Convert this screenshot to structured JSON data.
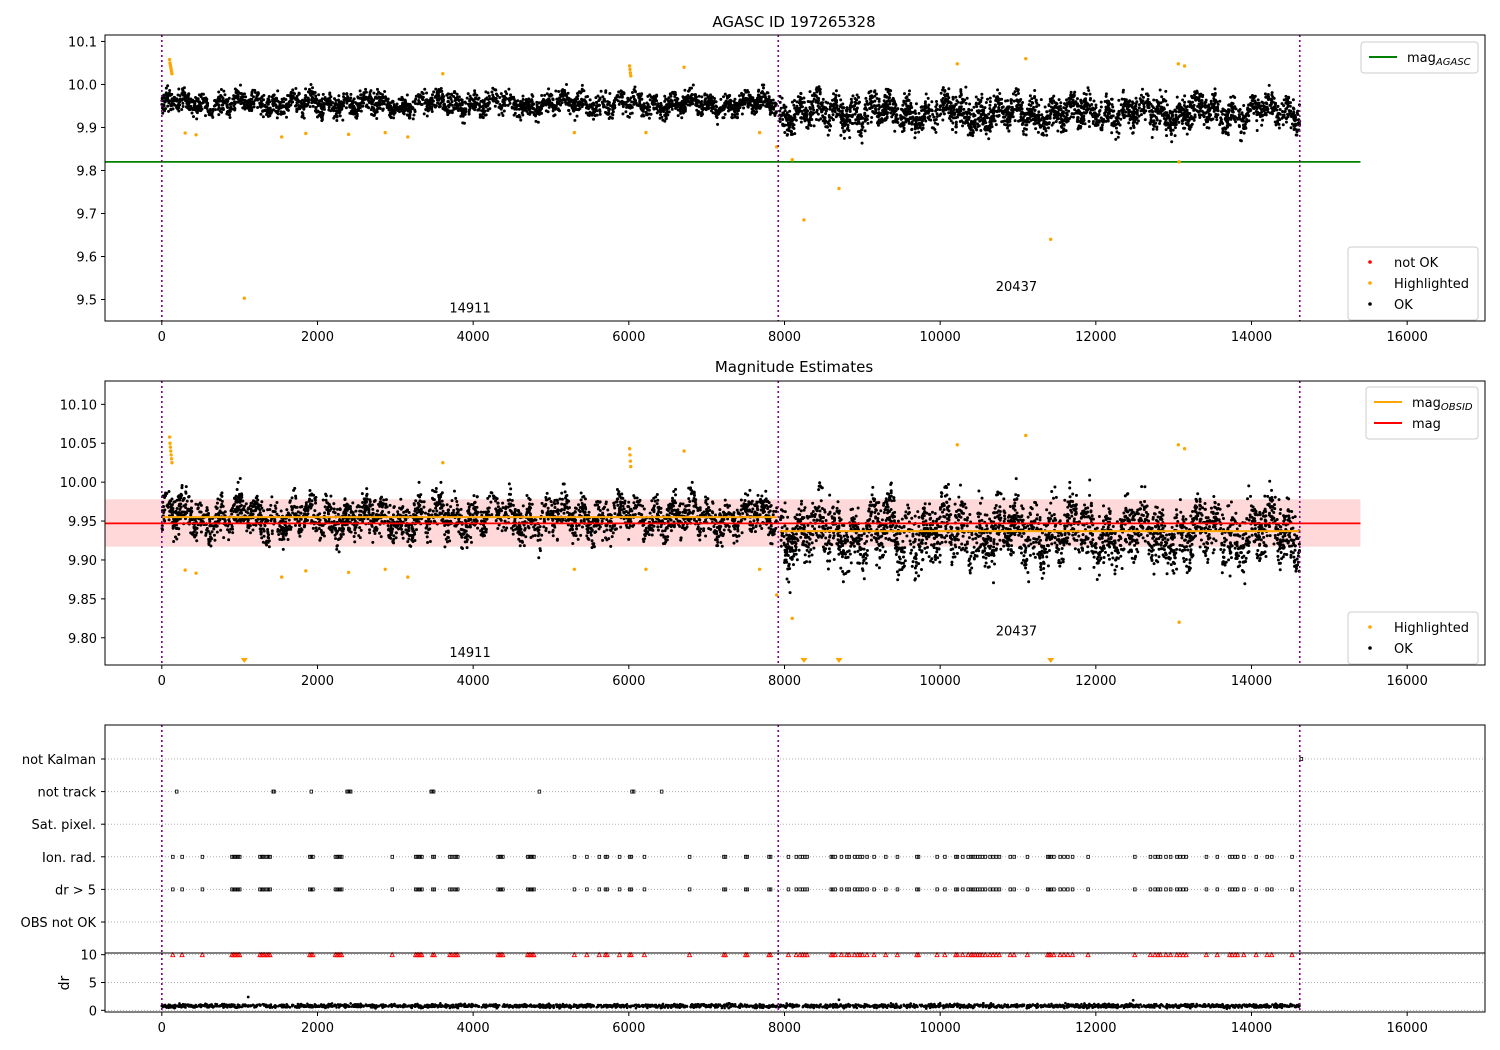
{
  "chart_data": [
    {
      "type": "scatter",
      "title": "AGASC ID 197265328",
      "xlabel": "",
      "ylabel": "",
      "xlim": [
        -730,
        17000
      ],
      "ylim": [
        9.45,
        10.115
      ],
      "xticks": [
        0,
        2000,
        4000,
        6000,
        8000,
        10000,
        12000,
        14000,
        16000
      ],
      "yticks": [
        9.5,
        9.6,
        9.7,
        9.8,
        9.9,
        10.0,
        10.1
      ],
      "ytick_labels": [
        "9.5",
        "9.6",
        "9.7",
        "9.8",
        "9.9",
        "10.0",
        "10.1"
      ],
      "grid": false,
      "vlines": [
        0,
        7920,
        14620
      ],
      "obsid_labels": [
        {
          "text": "14911",
          "x": 3960,
          "y": 9.47
        },
        {
          "text": "20437",
          "x": 10980,
          "y": 9.52
        }
      ],
      "hlines": [
        {
          "name": "mag_AGASC",
          "y": 9.82,
          "xrange": [
            -730,
            15400
          ],
          "color": "#008000"
        }
      ],
      "ok_segments": [
        {
          "x_start": 0,
          "x_end": 7900,
          "center": 9.955,
          "spread": 0.03,
          "color": "#000000"
        },
        {
          "x_start": 7940,
          "x_end": 14620,
          "center": 9.935,
          "spread": 0.045,
          "color": "#000000"
        }
      ],
      "highlighted_points": [
        {
          "x": 100,
          "y": 10.058
        },
        {
          "x": 105,
          "y": 10.05
        },
        {
          "x": 110,
          "y": 10.045
        },
        {
          "x": 115,
          "y": 10.04
        },
        {
          "x": 120,
          "y": 10.035
        },
        {
          "x": 125,
          "y": 10.03
        },
        {
          "x": 130,
          "y": 10.025
        },
        {
          "x": 300,
          "y": 9.887
        },
        {
          "x": 440,
          "y": 9.883
        },
        {
          "x": 1060,
          "y": 9.503
        },
        {
          "x": 1540,
          "y": 9.878
        },
        {
          "x": 1850,
          "y": 9.886
        },
        {
          "x": 2400,
          "y": 9.884
        },
        {
          "x": 2870,
          "y": 9.888
        },
        {
          "x": 3160,
          "y": 9.878
        },
        {
          "x": 3610,
          "y": 10.025
        },
        {
          "x": 5300,
          "y": 9.888
        },
        {
          "x": 6010,
          "y": 10.043
        },
        {
          "x": 6015,
          "y": 10.035
        },
        {
          "x": 6020,
          "y": 10.027
        },
        {
          "x": 6025,
          "y": 10.02
        },
        {
          "x": 6220,
          "y": 9.888
        },
        {
          "x": 6710,
          "y": 10.04
        },
        {
          "x": 7680,
          "y": 9.888
        },
        {
          "x": 7900,
          "y": 9.855
        },
        {
          "x": 8100,
          "y": 9.825
        },
        {
          "x": 8250,
          "y": 9.685
        },
        {
          "x": 8700,
          "y": 9.758
        },
        {
          "x": 10220,
          "y": 10.048
        },
        {
          "x": 11100,
          "y": 10.06
        },
        {
          "x": 11420,
          "y": 9.64
        },
        {
          "x": 13060,
          "y": 10.048
        },
        {
          "x": 13070,
          "y": 9.82
        },
        {
          "x": 13140,
          "y": 10.043
        }
      ],
      "legends": [
        {
          "position": "upper right",
          "entries": [
            {
              "label": "mag",
              "subscript": "AGASC",
              "marker": "line",
              "color": "#008000"
            }
          ]
        },
        {
          "position": "lower right",
          "entries": [
            {
              "label": "not OK",
              "marker": "dot",
              "color": "#ff0000"
            },
            {
              "label": "Highlighted",
              "marker": "dot",
              "color": "#ffa500"
            },
            {
              "label": "OK",
              "marker": "dot",
              "color": "#000000"
            }
          ]
        }
      ]
    },
    {
      "type": "scatter",
      "title": "Magnitude Estimates",
      "xlabel": "",
      "ylabel": "",
      "xlim": [
        -730,
        17000
      ],
      "ylim": [
        9.765,
        10.13
      ],
      "xticks": [
        0,
        2000,
        4000,
        6000,
        8000,
        10000,
        12000,
        14000,
        16000
      ],
      "yticks": [
        9.8,
        9.85,
        9.9,
        9.95,
        10.0,
        10.05,
        10.1
      ],
      "ytick_labels": [
        "9.80",
        "9.85",
        "9.90",
        "9.95",
        "10.00",
        "10.05",
        "10.10"
      ],
      "grid": false,
      "vlines": [
        0,
        7920,
        14620
      ],
      "obsid_labels": [
        {
          "text": "14911",
          "x": 3960,
          "y": 9.775
        },
        {
          "text": "20437",
          "x": 10980,
          "y": 9.803
        }
      ],
      "mag": 9.947,
      "mag_band": [
        9.917,
        9.978
      ],
      "mag_obsid": [
        {
          "x_start": 0,
          "x_end": 7900,
          "y": 9.955
        },
        {
          "x_start": 7940,
          "x_end": 14620,
          "y": 9.937
        }
      ],
      "ok_segments": [
        {
          "x_start": 0,
          "x_end": 7900,
          "center": 9.955,
          "spread": 0.03,
          "color": "#000000"
        },
        {
          "x_start": 7940,
          "x_end": 14620,
          "center": 9.935,
          "spread": 0.045,
          "color": "#000000"
        }
      ],
      "highlighted_points": [
        {
          "x": 100,
          "y": 10.058
        },
        {
          "x": 105,
          "y": 10.05
        },
        {
          "x": 110,
          "y": 10.045
        },
        {
          "x": 115,
          "y": 10.04
        },
        {
          "x": 120,
          "y": 10.035
        },
        {
          "x": 125,
          "y": 10.03
        },
        {
          "x": 130,
          "y": 10.025
        },
        {
          "x": 300,
          "y": 9.887
        },
        {
          "x": 440,
          "y": 9.883
        },
        {
          "x": 1540,
          "y": 9.878
        },
        {
          "x": 1850,
          "y": 9.886
        },
        {
          "x": 2400,
          "y": 9.884
        },
        {
          "x": 2870,
          "y": 9.888
        },
        {
          "x": 3160,
          "y": 9.878
        },
        {
          "x": 3610,
          "y": 10.025
        },
        {
          "x": 5300,
          "y": 9.888
        },
        {
          "x": 6010,
          "y": 10.043
        },
        {
          "x": 6015,
          "y": 10.035
        },
        {
          "x": 6020,
          "y": 10.027
        },
        {
          "x": 6025,
          "y": 10.02
        },
        {
          "x": 6220,
          "y": 9.888
        },
        {
          "x": 6710,
          "y": 10.04
        },
        {
          "x": 7680,
          "y": 9.888
        },
        {
          "x": 7900,
          "y": 9.855
        },
        {
          "x": 8100,
          "y": 9.825
        },
        {
          "x": 10220,
          "y": 10.048
        },
        {
          "x": 11100,
          "y": 10.06
        },
        {
          "x": 13060,
          "y": 10.048
        },
        {
          "x": 13070,
          "y": 9.82
        },
        {
          "x": 13140,
          "y": 10.043
        }
      ],
      "offscale_points_x": [
        1060,
        8250,
        8700,
        11420
      ],
      "legends": [
        {
          "position": "upper right",
          "entries": [
            {
              "label": "mag",
              "subscript": "OBSID",
              "marker": "line",
              "color": "#ffa500"
            },
            {
              "label": "mag",
              "subscript": "",
              "marker": "line",
              "color": "#ff0000"
            }
          ]
        },
        {
          "position": "lower right",
          "entries": [
            {
              "label": "Highlighted",
              "marker": "dot",
              "color": "#ffa500"
            },
            {
              "label": "OK",
              "marker": "dot",
              "color": "#000000"
            }
          ]
        }
      ]
    },
    {
      "type": "scatter",
      "title": "",
      "xlabel": "",
      "xlim": [
        -730,
        17000
      ],
      "xticks": [
        0,
        2000,
        4000,
        6000,
        8000,
        10000,
        12000,
        14000,
        16000
      ],
      "vlines": [
        0,
        7920,
        14620
      ],
      "flag_rows": [
        "not Kalman",
        "not track",
        "Sat. pixel.",
        "Ion. rad.",
        "dr > 5",
        "OBS not OK"
      ],
      "flag_events": {
        "not Kalman": [
          14640
        ],
        "not track": [
          190,
          1430,
          1440,
          1920,
          2380,
          2395,
          2410,
          2425,
          3460,
          3475,
          3490,
          4850,
          6040,
          6060,
          6420
        ],
        "Sat. pixel.": [],
        "Ion. rad.": [
          140,
          260,
          520,
          900,
          920,
          940,
          960,
          980,
          1000,
          1260,
          1280,
          1300,
          1320,
          1350,
          1370,
          1390,
          1900,
          1920,
          1940,
          2230,
          2250,
          2270,
          2290,
          2310,
          2960,
          3260,
          3280,
          3300,
          3320,
          3340,
          3480,
          3500,
          3700,
          3720,
          3760,
          3780,
          3800,
          4320,
          4340,
          4360,
          4380,
          4700,
          4720,
          4740,
          4760,
          4780,
          5300,
          5460,
          5620,
          5700,
          5720,
          5880,
          6010,
          6030,
          6200,
          6780,
          7220,
          7240,
          7500,
          7520,
          7800,
          7820,
          8050,
          8150,
          8200,
          8230,
          8260,
          8290,
          8600,
          8620,
          8650,
          8730,
          8800,
          8830,
          8900,
          8940,
          8970,
          9000,
          9060,
          9150,
          9300,
          9450,
          9700,
          9720,
          9960,
          10060,
          10200,
          10220,
          10290,
          10360,
          10400,
          10420,
          10450,
          10480,
          10510,
          10540,
          10580,
          10640,
          10680,
          10720,
          10760,
          10900,
          10950,
          11120,
          11380,
          11400,
          11420,
          11460,
          11540,
          11590,
          11640,
          11700,
          11900,
          12500,
          12700,
          12760,
          12800,
          12830,
          12900,
          12960,
          13040,
          13080,
          13120,
          13160,
          13420,
          13560,
          13720,
          13750,
          13790,
          13820,
          13900,
          14060,
          14200,
          14260,
          14520
        ],
        "dr > 5": [
          140,
          260,
          520,
          900,
          920,
          940,
          960,
          980,
          1000,
          1260,
          1280,
          1300,
          1320,
          1350,
          1370,
          1390,
          1900,
          1920,
          1940,
          2230,
          2250,
          2270,
          2290,
          2310,
          2960,
          3260,
          3280,
          3300,
          3320,
          3340,
          3480,
          3500,
          3700,
          3720,
          3760,
          3780,
          3800,
          4320,
          4340,
          4360,
          4380,
          4700,
          4720,
          4740,
          4760,
          4780,
          5300,
          5460,
          5620,
          5700,
          5720,
          5880,
          6010,
          6030,
          6200,
          6780,
          7220,
          7240,
          7500,
          7520,
          7800,
          7820,
          8050,
          8150,
          8200,
          8230,
          8260,
          8290,
          8600,
          8620,
          8650,
          8730,
          8800,
          8830,
          8900,
          8940,
          8970,
          9000,
          9060,
          9150,
          9300,
          9450,
          9700,
          9720,
          9960,
          10060,
          10200,
          10220,
          10290,
          10360,
          10400,
          10420,
          10450,
          10480,
          10510,
          10540,
          10580,
          10640,
          10680,
          10720,
          10760,
          10900,
          10950,
          11120,
          11380,
          11400,
          11420,
          11460,
          11540,
          11590,
          11640,
          11700,
          11900,
          12500,
          12700,
          12760,
          12800,
          12830,
          12900,
          12960,
          13040,
          13080,
          13120,
          13160,
          13420,
          13560,
          13720,
          13750,
          13790,
          13820,
          13900,
          14060,
          14200,
          14260,
          14520
        ],
        "OBS not OK": []
      }
    },
    {
      "type": "scatter",
      "title": "",
      "xlabel": "",
      "ylabel": "dr",
      "xlim": [
        -730,
        17000
      ],
      "ylim": [
        -0.3,
        10.3
      ],
      "xticks": [
        0,
        2000,
        4000,
        6000,
        8000,
        10000,
        12000,
        14000,
        16000
      ],
      "yticks": [
        0,
        5,
        10
      ],
      "grid": true,
      "vlines": [
        0,
        7920,
        14620
      ],
      "dr_baseline": {
        "mean": 0.8,
        "spread": 0.35,
        "x_start": 0,
        "x_end": 14620
      },
      "dr_clipped_marker_y": 10,
      "dr_spikes": [
        {
          "x": 1110,
          "y": 2.4
        },
        {
          "x": 8700,
          "y": 1.9
        },
        {
          "x": 12480,
          "y": 1.8
        }
      ]
    }
  ]
}
